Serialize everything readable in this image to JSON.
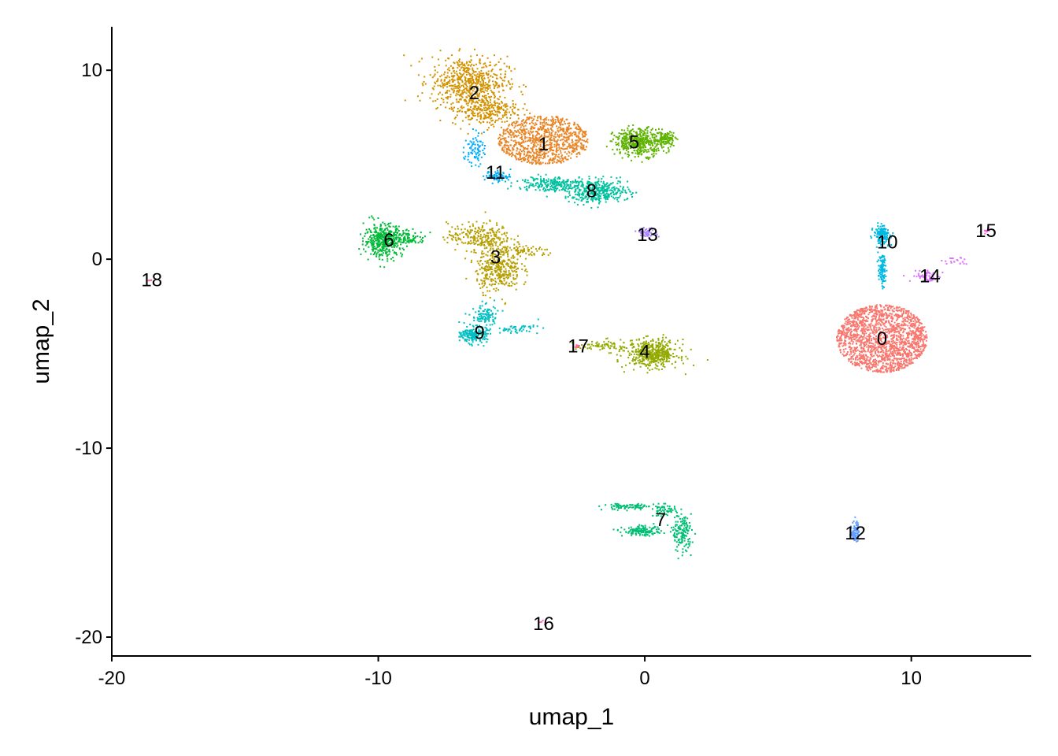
{
  "chart_data": {
    "type": "scatter",
    "title": "",
    "xlabel": "umap_1",
    "ylabel": "umap_2",
    "xlim": [
      -20,
      14.5
    ],
    "ylim": [
      -21,
      12.3
    ],
    "x_ticks": [
      -20,
      -10,
      0,
      10
    ],
    "y_ticks": [
      -20,
      -10,
      0,
      10
    ],
    "x_tick_labels": [
      "-20",
      "-10",
      "0",
      "10"
    ],
    "y_tick_labels": [
      "-20",
      "-10",
      "0",
      "10"
    ],
    "grid": false,
    "legend": "none",
    "clusters": [
      {
        "id": "0",
        "label": "0",
        "color": "#F8766D",
        "center": [
          8.9,
          -4.2
        ],
        "label_pos": [
          8.9,
          -4.2
        ]
      },
      {
        "id": "1",
        "label": "1",
        "color": "#E88526",
        "center": [
          -3.8,
          6.3
        ],
        "label_pos": [
          -3.8,
          6.1
        ]
      },
      {
        "id": "2",
        "label": "2",
        "color": "#D39200",
        "center": [
          -6.4,
          9.0
        ],
        "label_pos": [
          -6.4,
          8.8
        ]
      },
      {
        "id": "3",
        "label": "3",
        "color": "#B79F00",
        "center": [
          -5.8,
          -0.2
        ],
        "label_pos": [
          -5.6,
          0.1
        ]
      },
      {
        "id": "4",
        "label": "4",
        "color": "#93AA00",
        "center": [
          0.3,
          -5.0
        ],
        "label_pos": [
          0.0,
          -4.9
        ]
      },
      {
        "id": "5",
        "label": "5",
        "color": "#5EB300",
        "center": [
          -0.3,
          6.1
        ],
        "label_pos": [
          -0.4,
          6.2
        ]
      },
      {
        "id": "6",
        "label": "6",
        "color": "#00BA38",
        "center": [
          -9.8,
          1.0
        ],
        "label_pos": [
          -9.6,
          1.0
        ]
      },
      {
        "id": "7",
        "label": "7",
        "color": "#00BF74",
        "center": [
          0.8,
          -14.2
        ],
        "label_pos": [
          0.6,
          -13.8
        ]
      },
      {
        "id": "8",
        "label": "8",
        "color": "#00C19F",
        "center": [
          -2.0,
          3.8
        ],
        "label_pos": [
          -2.0,
          3.6
        ]
      },
      {
        "id": "9",
        "label": "9",
        "color": "#00BFC4",
        "center": [
          -6.3,
          -3.8
        ],
        "label_pos": [
          -6.2,
          -3.9
        ]
      },
      {
        "id": "10",
        "label": "10",
        "color": "#00B9E3",
        "center": [
          8.9,
          0.6
        ],
        "label_pos": [
          9.1,
          0.9
        ]
      },
      {
        "id": "11",
        "label": "11",
        "color": "#00ADFA",
        "center": [
          -5.6,
          4.8
        ],
        "label_pos": [
          -5.6,
          4.6
        ]
      },
      {
        "id": "12",
        "label": "12",
        "color": "#619CFF",
        "center": [
          7.9,
          -14.5
        ],
        "label_pos": [
          7.9,
          -14.5
        ]
      },
      {
        "id": "13",
        "label": "13",
        "color": "#AE87FF",
        "center": [
          0.1,
          1.4
        ],
        "label_pos": [
          0.1,
          1.3
        ]
      },
      {
        "id": "14",
        "label": "14",
        "color": "#DB72FB",
        "center": [
          10.7,
          -1.0
        ],
        "label_pos": [
          10.7,
          -0.9
        ]
      },
      {
        "id": "15",
        "label": "15",
        "color": "#F564E3",
        "center": [
          12.8,
          1.5
        ],
        "label_pos": [
          12.8,
          1.5
        ]
      },
      {
        "id": "16",
        "label": "16",
        "color": "#FF61C3",
        "center": [
          -3.8,
          -19.2
        ],
        "label_pos": [
          -3.8,
          -19.3
        ]
      },
      {
        "id": "17",
        "label": "17",
        "color": "#FF689F",
        "center": [
          -2.5,
          -4.6
        ],
        "label_pos": [
          -2.5,
          -4.6
        ]
      },
      {
        "id": "18",
        "label": "18",
        "color": "#FF6C91",
        "center": [
          -18.5,
          -1.1
        ],
        "label_pos": [
          -18.5,
          -1.1
        ]
      }
    ]
  }
}
